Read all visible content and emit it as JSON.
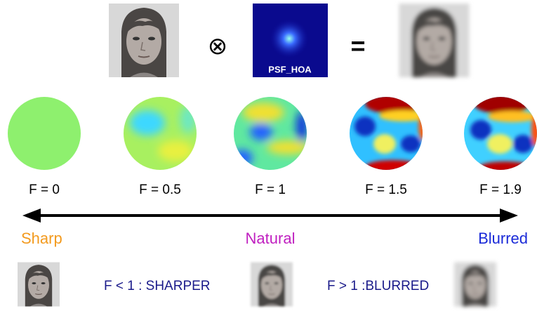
{
  "equation": {
    "operator": "⊗",
    "equals": "=",
    "psf_label": "PSF_HOA"
  },
  "wavefronts": [
    {
      "label": "F = 0"
    },
    {
      "label": "F = 0.5"
    },
    {
      "label": "F = 1"
    },
    {
      "label": "F = 1.5"
    },
    {
      "label": "F = 1.9"
    }
  ],
  "scale": {
    "left": "Sharp",
    "middle": "Natural",
    "right": "Blurred"
  },
  "examples": {
    "sharper": "F < 1 : SHARPER",
    "blurred": "F > 1 :BLURRED"
  }
}
